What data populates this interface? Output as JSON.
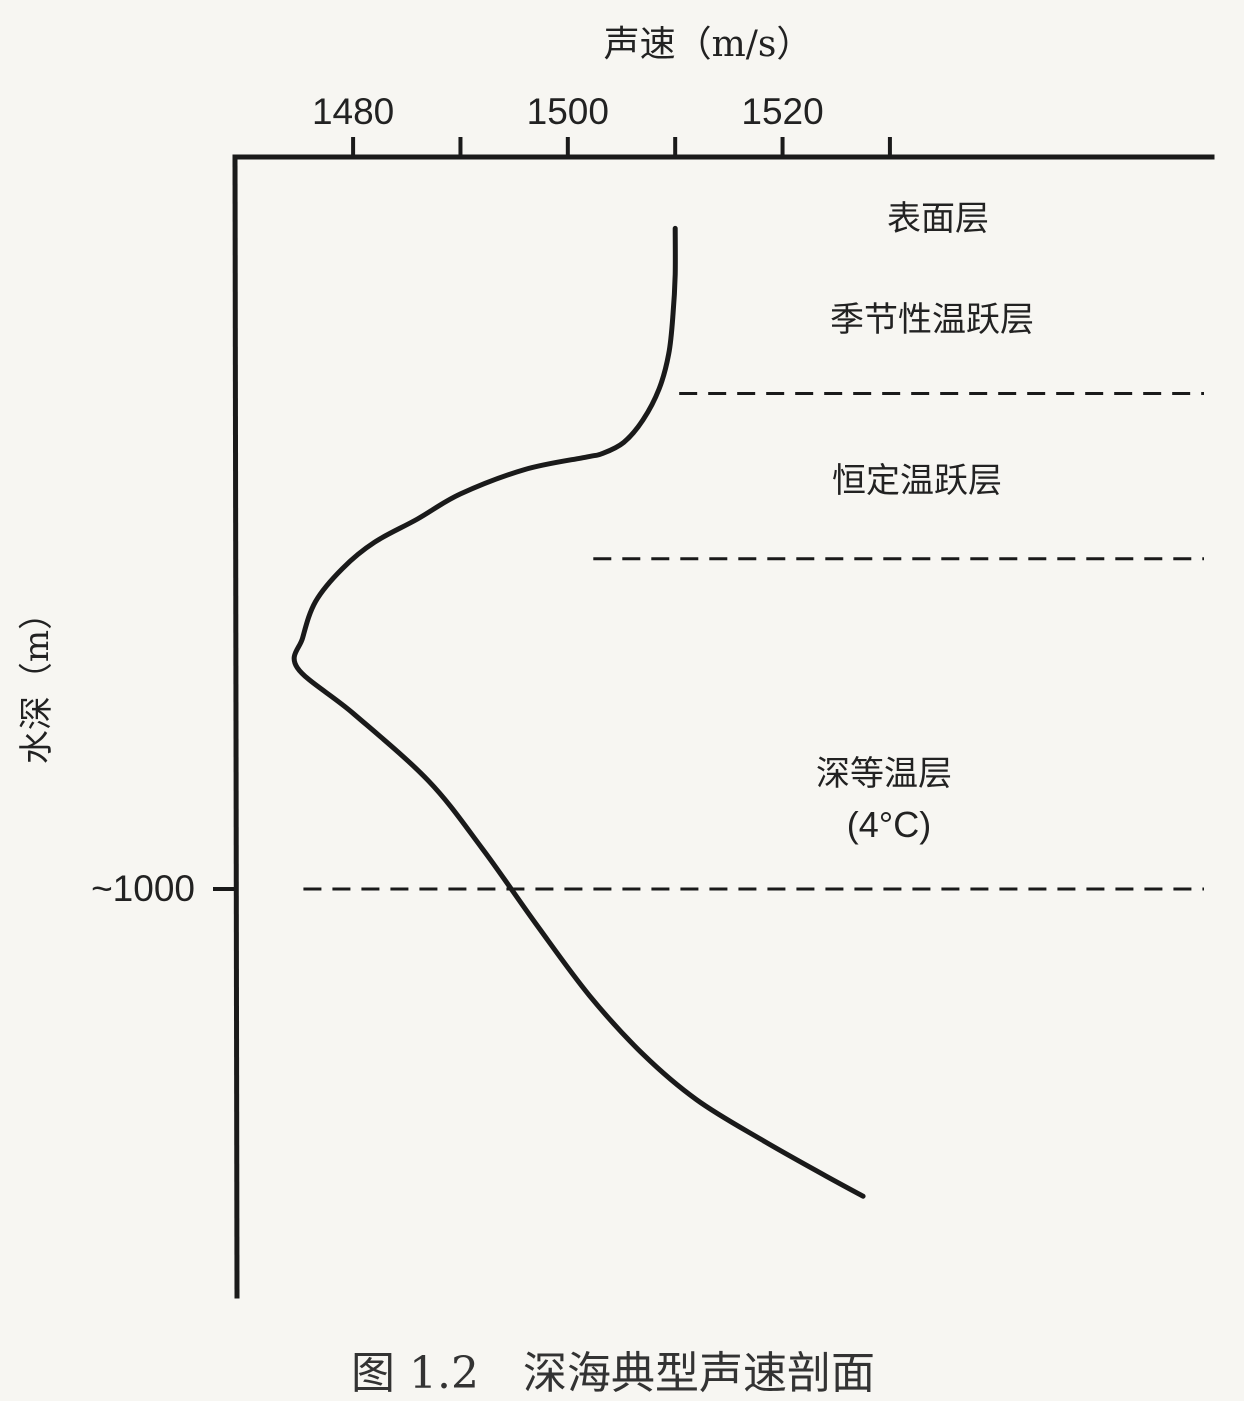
{
  "chart_data": {
    "type": "line",
    "xlabel": "声速（m/s）",
    "ylabel": "水深（m）",
    "x_ticks": [
      1480,
      1490,
      1500,
      1510,
      1520,
      1530
    ],
    "x_tick_labels": [
      {
        "value": 1480,
        "label": "1480"
      },
      {
        "value": 1500,
        "label": "1500"
      },
      {
        "value": 1520,
        "label": "1520"
      }
    ],
    "y_tick_labels": [
      {
        "value": 1000,
        "label": "~1000"
      }
    ],
    "xlim": [
      1469,
      1560
    ],
    "ylim": [
      -108,
      1616
    ],
    "grid": false,
    "series": [
      {
        "x": [
          1510,
          1510,
          1509.8,
          1509.4,
          1508.5,
          1507.0,
          1505.2,
          1503.2,
          1501.8,
          1496,
          1490,
          1486,
          1482,
          1479,
          1476.5,
          1475.3,
          1474.8,
          1480,
          1487,
          1492,
          1497,
          1502,
          1507,
          1512,
          1518,
          1524,
          1527.5
        ],
        "y": [
          0,
          70,
          130,
          190,
          243,
          290,
          324,
          341,
          346,
          365,
          402,
          440,
          475,
          515,
          565,
          620,
          665,
          734,
          836,
          938,
          1052,
          1161,
          1250,
          1319,
          1379,
          1434,
          1465
        ]
      }
    ],
    "layer_boundaries": [
      {
        "depth": 250,
        "x_from": 1510
      },
      {
        "depth": 500,
        "x_from": 1502
      },
      {
        "depth": 1000,
        "x_from": 1475
      }
    ],
    "annotations": {
      "surface": "表面层",
      "seasonal": "季节性温跃层",
      "main": "恒定温跃层",
      "deep": "深等温层",
      "deep_temp": "(4°C)"
    }
  },
  "caption": "图 1.2　深海典型声速剖面"
}
